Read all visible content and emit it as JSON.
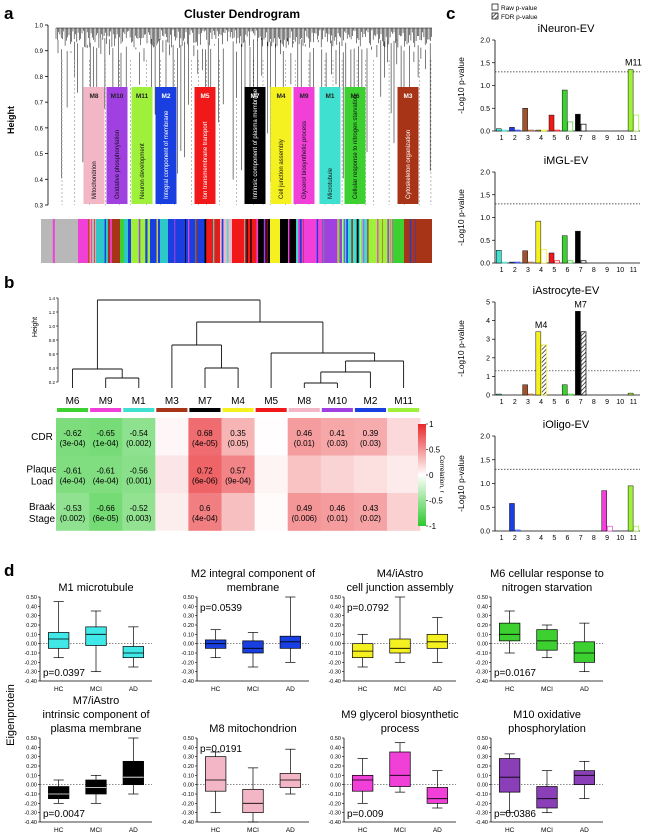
{
  "panel_labels": {
    "a": "a",
    "b": "b",
    "c": "c",
    "d": "d"
  },
  "panel_a": {
    "title": "Cluster Dendrogram",
    "ylabel": "Height",
    "y_ticks": [
      "1.0",
      "0.9",
      "0.8",
      "0.7",
      "0.6",
      "0.5",
      "0.4",
      "0.3"
    ],
    "modules": [
      {
        "id": "M8",
        "color": "#f2b6c6",
        "text": "Mitochondrion",
        "dark": false
      },
      {
        "id": "M10",
        "color": "#a040e0",
        "text": "Oxidative phosphorylation",
        "dark": false
      },
      {
        "id": "M11",
        "color": "#9ef03a",
        "text": "Neuron development",
        "dark": false
      },
      {
        "id": "M2",
        "color": "#1a3fe0",
        "text": "Integral component of membrane",
        "dark": true
      },
      {
        "id": "M5",
        "color": "#f01818",
        "text": "Ion transmembrane transport",
        "dark": true
      },
      {
        "id": "M7",
        "color": "#000000",
        "text": "Intrinsic component of plasma membrane",
        "dark": true
      },
      {
        "id": "M4",
        "color": "#f5f020",
        "text": "Cell junction assembly",
        "dark": false
      },
      {
        "id": "M9",
        "color": "#f040d8",
        "text": "Glycerol biosynthetic process",
        "dark": false
      },
      {
        "id": "M1",
        "color": "#40e0d0",
        "text": "Microtubule",
        "dark": false
      },
      {
        "id": "M6",
        "color": "#3cd030",
        "text": "Cellular response to nitrogen starvation",
        "dark": false
      },
      {
        "id": "M3",
        "color": "#a83418",
        "text": "Cytoskeleton organization",
        "dark": true
      }
    ]
  },
  "panel_b": {
    "ylabel": "Height",
    "y_ticks": [
      "1.4",
      "1.2",
      "1.0",
      "0.8",
      "0.6",
      "0.4",
      "0.2"
    ],
    "legend_title": "Correlation, r",
    "legend_ticks": [
      "1",
      "0.5",
      "0",
      "-0.5",
      "-1"
    ],
    "columns": [
      {
        "id": "M6",
        "color": "#3cd030"
      },
      {
        "id": "M9",
        "color": "#f040d8"
      },
      {
        "id": "M1",
        "color": "#40e0d0"
      },
      {
        "id": "M3",
        "color": "#a83418"
      },
      {
        "id": "M7",
        "color": "#000000"
      },
      {
        "id": "M4",
        "color": "#f5f020"
      },
      {
        "id": "M5",
        "color": "#f01818"
      },
      {
        "id": "M8",
        "color": "#f2b6c6"
      },
      {
        "id": "M10",
        "color": "#a040e0"
      },
      {
        "id": "M2",
        "color": "#1a3fe0"
      },
      {
        "id": "M11",
        "color": "#9ef03a"
      }
    ],
    "rows": [
      {
        "label": [
          "CDR"
        ],
        "r": [
          -0.62,
          -0.65,
          -0.54,
          0.04,
          0.68,
          0.35,
          0.01,
          0.46,
          0.41,
          0.39,
          0.18
        ],
        "text": [
          [
            "-0.62",
            "(3e-04)"
          ],
          [
            "-0.65",
            "(1e-04)"
          ],
          [
            "-0.54",
            "(0.002)"
          ],
          null,
          [
            "0.68",
            "(4e-05)"
          ],
          [
            "0.35",
            "(0.05)"
          ],
          null,
          [
            "0.46",
            "(0.01)"
          ],
          [
            "0.41",
            "(0.03)"
          ],
          [
            "0.39",
            "(0.03)"
          ],
          null
        ]
      },
      {
        "label": [
          "Plaque",
          "Load"
        ],
        "r": [
          -0.61,
          -0.61,
          -0.56,
          0.12,
          0.72,
          0.57,
          0.05,
          0.28,
          0.2,
          0.15,
          0.1
        ],
        "text": [
          [
            "-0.61",
            "(4e-04)"
          ],
          [
            "-0.61",
            "(4e-04)"
          ],
          [
            "-0.56",
            "(0.001)"
          ],
          null,
          [
            "0.72",
            "(6e-06)"
          ],
          [
            "0.57",
            "(9e-04)"
          ],
          null,
          null,
          null,
          null,
          null
        ]
      },
      {
        "label": [
          "Braak",
          "Stage"
        ],
        "r": [
          -0.53,
          -0.66,
          -0.52,
          0.08,
          0.6,
          0.3,
          0.02,
          0.49,
          0.46,
          0.43,
          0.22
        ],
        "text": [
          [
            "-0.53",
            "(0.002)"
          ],
          [
            "-0.66",
            "(6e-05)"
          ],
          [
            "-0.52",
            "(0.003)"
          ],
          null,
          [
            "0.6",
            "(4e-04)"
          ],
          null,
          null,
          [
            "0.49",
            "(0.006)"
          ],
          [
            "0.46",
            "(0.01)"
          ],
          [
            "0.43",
            "(0.02)"
          ],
          null
        ]
      }
    ]
  },
  "panel_c": {
    "legend": [
      "Raw p-value",
      "FDR p-value"
    ],
    "ylabel": "-Log10 p-value",
    "x_categories": [
      "1",
      "2",
      "3",
      "4",
      "5",
      "6",
      "7",
      "8",
      "9",
      "10",
      "11"
    ],
    "module_colors": [
      "#40e0d0",
      "#1a3fe0",
      "#a0522d",
      "#f5f020",
      "#f01818",
      "#3cd030",
      "#000000",
      "#f2b6c6",
      "#f040d8",
      "#a040e0",
      "#9ef03a"
    ],
    "threshold": 1.3,
    "charts": [
      {
        "title": "iNeuron-EV",
        "ylim": [
          0,
          2.0
        ],
        "y_ticks": [
          "2.0",
          "1.5",
          "1.0",
          "0.5",
          "0.0"
        ],
        "raw": [
          0.05,
          0.08,
          0.5,
          0.02,
          0.35,
          0.9,
          0.37,
          0,
          0,
          0,
          1.35
        ],
        "fdr": [
          0.02,
          0.02,
          0.02,
          0.02,
          0.02,
          0.2,
          0.15,
          0,
          0,
          0,
          0.35
        ],
        "annotations": [
          {
            "text": "M11",
            "module": 11
          }
        ]
      },
      {
        "title": "iMGL-EV",
        "ylim": [
          0,
          2.0
        ],
        "y_ticks": [
          "2.0",
          "1.5",
          "1.0",
          "0.5",
          "0.0"
        ],
        "raw": [
          0.28,
          0.02,
          0.27,
          0.92,
          0.22,
          0.6,
          0.7,
          0,
          0,
          0,
          0
        ],
        "fdr": [
          0.02,
          0.02,
          0.02,
          0.3,
          0.05,
          0.05,
          0.05,
          0,
          0,
          0,
          0
        ],
        "annotations": []
      },
      {
        "title": "iAstrocyte-EV",
        "ylim": [
          0,
          5
        ],
        "y_ticks": [
          "5",
          "4",
          "3",
          "2",
          "1",
          "0"
        ],
        "raw": [
          0.05,
          0,
          0.55,
          3.4,
          0,
          0.55,
          4.5,
          0,
          0,
          0,
          0.1
        ],
        "fdr": [
          0,
          0,
          0.05,
          2.7,
          0,
          0.05,
          3.4,
          0,
          0,
          0,
          0
        ],
        "annotations": [
          {
            "text": "M4",
            "module": 4
          },
          {
            "text": "M7",
            "module": 7
          }
        ]
      },
      {
        "title": "iOligo-EV",
        "ylim": [
          0,
          2.0
        ],
        "y_ticks": [
          "2.0",
          "1.5",
          "1.0",
          "0.5",
          "0.0"
        ],
        "raw": [
          0,
          0.58,
          0,
          0,
          0,
          0,
          0,
          0,
          0.85,
          0,
          0.95
        ],
        "fdr": [
          0,
          0.02,
          0,
          0,
          0,
          0,
          0,
          0,
          0.1,
          0,
          0.1
        ],
        "annotations": []
      }
    ]
  },
  "panel_d": {
    "ylabel": "Eigenprotein",
    "groups": [
      "HC",
      "MCI",
      "AD"
    ],
    "y_ticks": [
      "0.50",
      "0.40",
      "0.30",
      "0.20",
      "0.10",
      "0.00",
      "-0.10",
      "-0.20",
      "-0.30",
      "-0.40"
    ],
    "ylim": [
      -0.4,
      0.5
    ],
    "plots": [
      {
        "title": [
          "M1 microtubule"
        ],
        "pvalue": "p=0.0397",
        "color": "#40e8e8",
        "boxes": [
          [
            -0.15,
            -0.05,
            0.05,
            0.12,
            0.45
          ],
          [
            -0.3,
            -0.02,
            0.1,
            0.18,
            0.35
          ],
          [
            -0.25,
            -0.15,
            -0.1,
            -0.03,
            0.18
          ]
        ]
      },
      {
        "title": [
          "M2 integral component of",
          "membrane"
        ],
        "pvalue": "p=0.0539",
        "color": "#1a3fe0",
        "boxes": [
          [
            -0.15,
            -0.05,
            0.0,
            0.04,
            0.15
          ],
          [
            -0.25,
            -0.1,
            -0.05,
            0.03,
            0.12
          ],
          [
            -0.2,
            -0.05,
            0.02,
            0.08,
            0.78
          ]
        ]
      },
      {
        "title": [
          "M4/iAstro",
          "cell junction assembly"
        ],
        "pvalue": "p=0.0792",
        "color": "#f5f020",
        "boxes": [
          [
            -0.25,
            -0.15,
            -0.08,
            0.0,
            0.1
          ],
          [
            -0.2,
            -0.1,
            -0.05,
            0.05,
            0.5
          ],
          [
            -0.2,
            -0.05,
            0.02,
            0.1,
            0.28
          ]
        ]
      },
      {
        "title": [
          "M6 cellular response to",
          "nitrogen starvation"
        ],
        "pvalue": "p=0.0167",
        "color": "#3cd030",
        "boxes": [
          [
            -0.1,
            0.03,
            0.1,
            0.22,
            0.35
          ],
          [
            -0.15,
            -0.07,
            0.03,
            0.15,
            0.2
          ],
          [
            -0.3,
            -0.2,
            -0.1,
            0.02,
            0.22
          ]
        ]
      },
      {
        "title": [
          "M7/iAstro",
          "intrinsic component of",
          "plasma membrane"
        ],
        "pvalue": "p=0.0047",
        "color": "#000000",
        "boxes": [
          [
            -0.2,
            -0.15,
            -0.1,
            -0.02,
            0.05
          ],
          [
            -0.2,
            -0.1,
            -0.03,
            0.05,
            0.1
          ],
          [
            -0.1,
            0.0,
            0.08,
            0.25,
            0.63
          ]
        ]
      },
      {
        "title": [
          "M8 mitochondrion"
        ],
        "pvalue": "p=0.0191",
        "color": "#f2b6c6",
        "boxes": [
          [
            -0.3,
            -0.07,
            0.05,
            0.3,
            0.35
          ],
          [
            -0.4,
            -0.3,
            -0.2,
            -0.05,
            0.18
          ],
          [
            -0.1,
            -0.03,
            0.05,
            0.12,
            0.38
          ]
        ]
      },
      {
        "title": [
          "M9 glycerol biosynthetic",
          "process"
        ],
        "pvalue": "p=0.009",
        "color": "#f040d8",
        "boxes": [
          [
            -0.2,
            -0.07,
            0.05,
            0.1,
            0.28
          ],
          [
            -0.08,
            -0.02,
            0.1,
            0.35,
            0.45
          ],
          [
            -0.25,
            -0.2,
            -0.15,
            -0.03,
            0.15
          ]
        ]
      },
      {
        "title": [
          "M10 oxidative",
          "phosphorylation"
        ],
        "pvalue": "p=0.0386",
        "color": "#8a3fb8",
        "boxes": [
          [
            -0.3,
            -0.08,
            0.08,
            0.28,
            0.33
          ],
          [
            -0.3,
            -0.25,
            -0.15,
            -0.02,
            0.15
          ],
          [
            -0.15,
            0.0,
            0.1,
            0.15,
            0.25
          ]
        ]
      }
    ]
  }
}
